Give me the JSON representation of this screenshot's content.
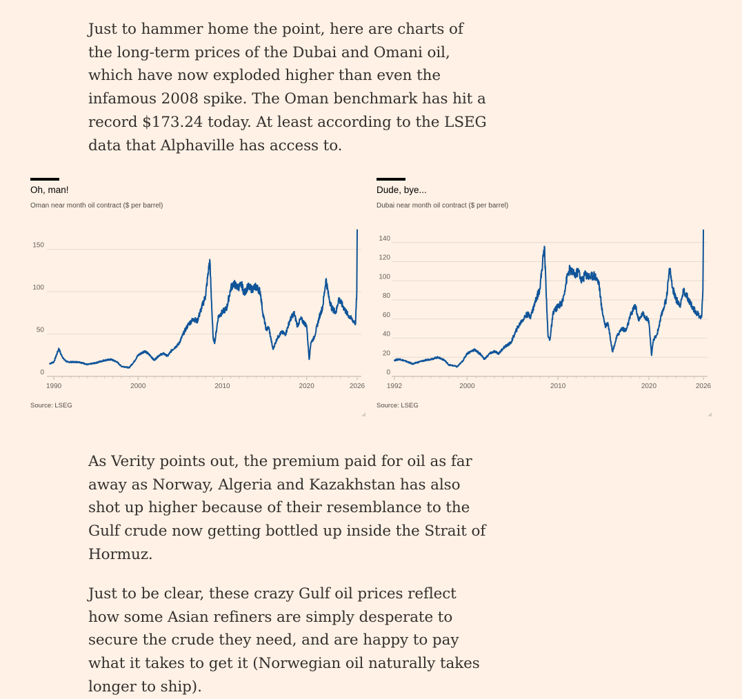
{
  "article": {
    "para1": "Just to hammer home the point, here are charts of the long-term prices of the Dubai and Omani oil, which have now exploded higher than even the infamous 2008 spike. The Oman benchmark has hit a record $173.24 today. At least according to the LSEG data that Alphaville has access to.",
    "para2": "As Verity points out, the premium paid for oil as far away as Norway, Algeria and Kazakhstan has also shot up higher because of their resemblance to the Gulf crude now getting bottled up inside the Strait of Hormuz.",
    "para3": "Just to be clear, these crazy Gulf oil prices reflect how some Asian refiners are simply desperate to secure the crude they need, and are happy to pay what it takes to get it (Norwegian oil naturally takes longer to ship)."
  },
  "colors": {
    "background": "#fff1e5",
    "text": "#33302e",
    "series": "#0f5499",
    "grid": "#e6d9ce"
  },
  "chart_data": [
    {
      "type": "line",
      "title": "Oh, man!",
      "subtitle": "Oman near month oil contract ($ per barrel)",
      "source": "Source: LSEG",
      "xlabel": "",
      "ylabel": "",
      "xlim": [
        1989.5,
        2026
      ],
      "ylim": [
        0,
        175
      ],
      "yticks": [
        0,
        50,
        100,
        150
      ],
      "xticks": [
        {
          "value": 1990,
          "label": "1990"
        },
        {
          "value": 2000,
          "label": "2000"
        },
        {
          "value": 2010,
          "label": "2010"
        },
        {
          "value": 2020,
          "label": "2020"
        },
        {
          "value": 2026,
          "label": "2026"
        }
      ],
      "series": [
        {
          "name": "Oman near month oil contract",
          "x": [
            1989.5,
            1990.0,
            1990.6,
            1990.8,
            1991.2,
            1991.6,
            1993.0,
            1994.0,
            1995.0,
            1996.0,
            1996.8,
            1997.5,
            1998.0,
            1998.6,
            1998.9,
            1999.5,
            2000.0,
            2000.8,
            2001.5,
            2001.9,
            2002.5,
            2003.0,
            2003.5,
            2004.0,
            2004.8,
            2005.5,
            2006.0,
            2006.6,
            2007.0,
            2007.5,
            2008.0,
            2008.5,
            2008.9,
            2009.1,
            2009.5,
            2010.0,
            2010.5,
            2011.0,
            2011.3,
            2011.8,
            2012.3,
            2012.6,
            2013.0,
            2013.5,
            2014.0,
            2014.5,
            2014.8,
            2015.2,
            2015.5,
            2016.0,
            2016.5,
            2017.0,
            2017.5,
            2018.0,
            2018.5,
            2018.9,
            2019.3,
            2019.8,
            2020.0,
            2020.3,
            2020.5,
            2020.9,
            2021.5,
            2021.9,
            2022.3,
            2022.6,
            2023.0,
            2023.5,
            2023.8,
            2024.3,
            2024.8,
            2025.3,
            2025.6,
            2025.8,
            2025.95,
            2026.0
          ],
          "values": [
            15,
            17,
            33,
            27,
            20,
            17,
            17,
            14,
            16,
            19,
            20,
            17,
            12,
            11,
            10,
            17,
            25,
            30,
            24,
            19,
            25,
            27,
            24,
            31,
            38,
            53,
            62,
            68,
            65,
            80,
            95,
            138,
            45,
            40,
            70,
            76,
            80,
            104,
            110,
            105,
            108,
            98,
            106,
            103,
            106,
            100,
            75,
            55,
            58,
            32,
            45,
            52,
            50,
            66,
            75,
            60,
            68,
            62,
            60,
            20,
            40,
            46,
            70,
            82,
            115,
            95,
            80,
            76,
            92,
            83,
            74,
            68,
            65,
            63,
            100,
            173
          ]
        }
      ]
    },
    {
      "type": "line",
      "title": "Dude, bye...",
      "subtitle": "Dubai near month oil contract ($ per barrel)",
      "source": "Source: LSEG",
      "xlabel": "",
      "ylabel": "",
      "xlim": [
        1992,
        2026
      ],
      "ylim": [
        0,
        155
      ],
      "yticks": [
        0,
        20,
        40,
        60,
        80,
        100,
        120,
        140
      ],
      "xticks": [
        {
          "value": 1992,
          "label": "1992"
        },
        {
          "value": 2000,
          "label": "2000"
        },
        {
          "value": 2010,
          "label": "2010"
        },
        {
          "value": 2020,
          "label": "2020"
        },
        {
          "value": 2026,
          "label": "2026"
        }
      ],
      "series": [
        {
          "name": "Dubai near month oil contract",
          "x": [
            1992.0,
            1992.6,
            1993.5,
            1994.0,
            1995.0,
            1996.0,
            1996.8,
            1997.5,
            1998.0,
            1998.6,
            1998.9,
            1999.5,
            2000.0,
            2000.8,
            2001.5,
            2001.9,
            2002.5,
            2003.0,
            2003.5,
            2004.0,
            2004.8,
            2005.5,
            2006.0,
            2006.6,
            2007.0,
            2007.5,
            2008.0,
            2008.5,
            2008.9,
            2009.1,
            2009.5,
            2010.0,
            2010.5,
            2011.0,
            2011.3,
            2011.8,
            2012.3,
            2012.6,
            2013.0,
            2013.5,
            2014.0,
            2014.5,
            2014.8,
            2015.2,
            2015.5,
            2016.0,
            2016.5,
            2017.0,
            2017.5,
            2018.0,
            2018.5,
            2018.9,
            2019.3,
            2019.8,
            2020.0,
            2020.3,
            2020.5,
            2020.9,
            2021.5,
            2021.9,
            2022.3,
            2022.6,
            2023.0,
            2023.5,
            2023.8,
            2024.3,
            2024.8,
            2025.3,
            2025.6,
            2025.8,
            2025.95,
            2026.0
          ],
          "values": [
            17,
            18,
            15,
            13,
            16,
            18,
            20,
            17,
            12,
            11,
            10,
            16,
            24,
            28,
            23,
            18,
            24,
            26,
            24,
            30,
            35,
            50,
            58,
            65,
            63,
            78,
            92,
            136,
            42,
            38,
            68,
            73,
            78,
            104,
            112,
            106,
            110,
            99,
            107,
            104,
            106,
            98,
            72,
            53,
            56,
            26,
            42,
            50,
            48,
            64,
            75,
            58,
            66,
            60,
            58,
            22,
            38,
            44,
            68,
            80,
            113,
            93,
            80,
            75,
            90,
            82,
            72,
            66,
            63,
            62,
            90,
            153
          ]
        }
      ]
    }
  ]
}
